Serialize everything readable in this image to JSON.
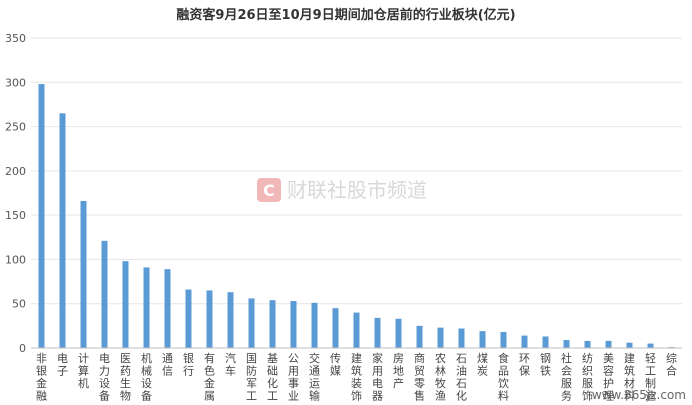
{
  "chart_data": {
    "type": "bar",
    "title": "融资客9月26日至10月9日期间加仓居前的行业板块(亿元)",
    "categories": [
      "非银金融",
      "电子",
      "计算机",
      "电力设备",
      "医药生物",
      "机械设备",
      "通信",
      "银行",
      "有色金属",
      "汽车",
      "国防军工",
      "基础化工",
      "公用事业",
      "交通运输",
      "传媒",
      "建筑装饰",
      "家用电器",
      "房地产",
      "商贸零售",
      "农林牧渔",
      "石油石化",
      "煤炭",
      "食品饮料",
      "环保",
      "钢铁",
      "社会服务",
      "纺织服饰",
      "美容护理",
      "建筑材料",
      "轻工制造",
      "综合"
    ],
    "values": [
      298,
      265,
      166,
      121,
      98,
      91,
      89,
      66,
      65,
      63,
      56,
      54,
      53,
      51,
      45,
      40,
      34,
      33,
      25,
      23,
      22,
      19,
      18,
      14,
      13,
      9,
      8,
      8,
      6,
      5,
      1
    ],
    "ylim": [
      0,
      350
    ],
    "yticks": [
      0,
      50,
      100,
      150,
      200,
      250,
      300,
      350
    ],
    "xlabel": "",
    "ylabel": "",
    "grid": true,
    "bar_color": "#5b9bd5"
  },
  "watermark": {
    "logo_letter": "C",
    "text": "财联社股市频道"
  },
  "footer": {
    "url": "www.365jz.com"
  },
  "colors": {
    "watermark_logo": "#f2b8b8"
  }
}
